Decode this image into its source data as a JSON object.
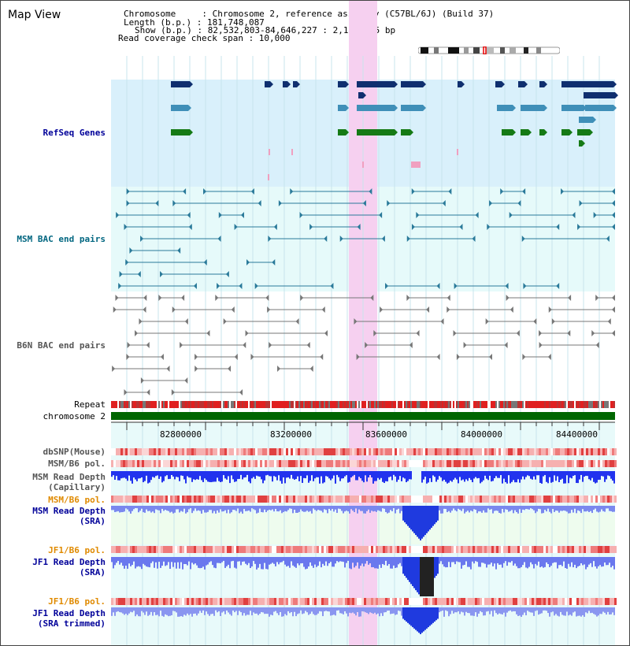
{
  "page": {
    "title": "Map View"
  },
  "info": {
    "line1": "Chromosome     : Chromosome 2, reference assembly (C57BL/6J) (Build 37)",
    "line2": "Length (b.p.) : 181,748,087",
    "line3": "Show (b.p.) : 82,532,803-84,646,227 : 2,113,425 bp",
    "line4": "Read coverage check span : 10,000"
  },
  "tracks": {
    "refseq": "RefSeq Genes",
    "msm_bac": "MSM BAC end pairs",
    "b6n_bac": "B6N BAC end pairs",
    "repeat": "Repeat",
    "chromosome": "chromosome 2",
    "dbsnp": "dbSNP(Mouse)",
    "msm_b6_pol_1": "MSM/B6 pol.",
    "msm_read_cap_1": "MSM Read Depth",
    "msm_read_cap_2": "(Capillary)",
    "msm_b6_pol_2": "MSM/B6 pol.",
    "msm_read_sra_1": "MSM Read Depth",
    "msm_read_sra_2": "(SRA)",
    "jf1_b6_pol_1": "JF1/B6 pol.",
    "jf1_read_sra_1": "JF1 Read Depth",
    "jf1_read_sra_2": "(SRA)",
    "jf1_b6_pol_2": "JF1/B6 pol.",
    "jf1_read_trim_1": "JF1 Read Depth",
    "jf1_read_trim_2": "(SRA trimmed)"
  },
  "axis": {
    "ticks": [
      "82800000",
      "83200000",
      "83600000",
      "84000000",
      "84400000"
    ]
  },
  "colors": {
    "refseq_bg": "#d9f0fb",
    "msm_bg": "#e6fafa",
    "highlight": "#f6d0f0",
    "gene_navy": "#0f2f6f",
    "gene_steel": "#3f8fb8",
    "gene_green": "#157a15",
    "chrom_green": "#006600",
    "depth_blue": "#2233ee"
  }
}
